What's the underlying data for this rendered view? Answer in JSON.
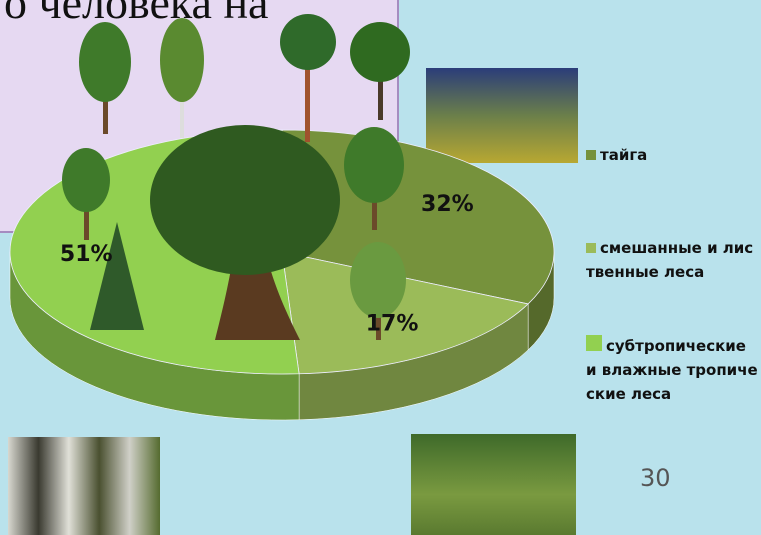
{
  "chart_data": {
    "type": "pie",
    "title": "о человека на",
    "categories": [
      "тайга",
      "смешанные и лиственные леса",
      "субтропические и влажные тропические леса"
    ],
    "values": [
      32,
      17,
      51
    ],
    "value_labels": [
      "32%",
      "17%",
      "51%"
    ],
    "colors": [
      "#76923c",
      "#9bbb59",
      "#92d050"
    ],
    "legend": "right"
  },
  "slide_number": "30"
}
